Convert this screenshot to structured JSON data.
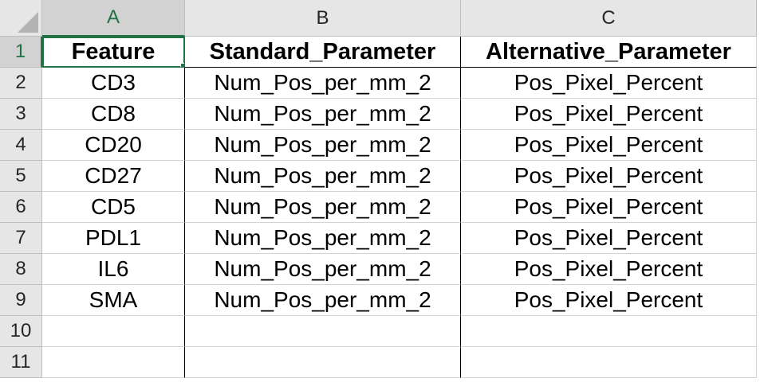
{
  "columns": [
    "A",
    "B",
    "C"
  ],
  "rows": [
    "1",
    "2",
    "3",
    "4",
    "5",
    "6",
    "7",
    "8",
    "9",
    "10",
    "11"
  ],
  "cells": [
    [
      "Feature",
      "Standard_Parameter",
      "Alternative_Parameter"
    ],
    [
      "CD3",
      "Num_Pos_per_mm_2",
      "Pos_Pixel_Percent"
    ],
    [
      "CD8",
      "Num_Pos_per_mm_2",
      "Pos_Pixel_Percent"
    ],
    [
      "CD20",
      "Num_Pos_per_mm_2",
      "Pos_Pixel_Percent"
    ],
    [
      "CD27",
      "Num_Pos_per_mm_2",
      "Pos_Pixel_Percent"
    ],
    [
      "CD5",
      "Num_Pos_per_mm_2",
      "Pos_Pixel_Percent"
    ],
    [
      "PDL1",
      "Num_Pos_per_mm_2",
      "Pos_Pixel_Percent"
    ],
    [
      "IL6",
      "Num_Pos_per_mm_2",
      "Pos_Pixel_Percent"
    ],
    [
      "SMA",
      "Num_Pos_per_mm_2",
      "Pos_Pixel_Percent"
    ],
    [
      "",
      "",
      ""
    ],
    [
      "",
      "",
      ""
    ]
  ],
  "selection": {
    "active_cell": "A1"
  },
  "colors": {
    "accent": "#217346",
    "header_bg": "#e6e6e6",
    "gridline": "#d4d4d4"
  }
}
